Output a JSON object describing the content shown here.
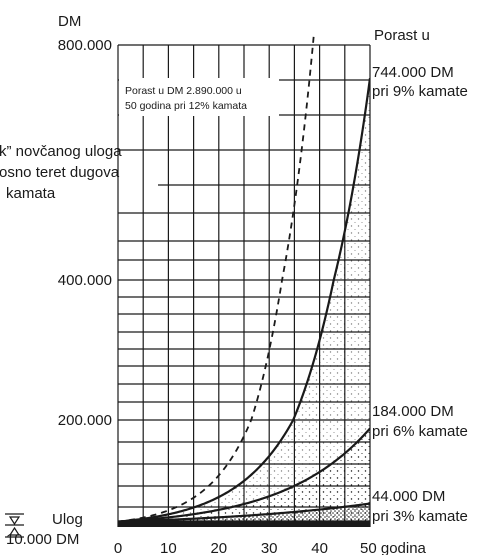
{
  "chart_data": {
    "type": "line",
    "y_unit": "DM",
    "x_unit": "50 godina",
    "x_ticks": [
      "0",
      "10",
      "20",
      "30",
      "40"
    ],
    "y_ticks": [
      {
        "value": 200000,
        "label": "200.000"
      },
      {
        "value": 400000,
        "label": "400.000"
      },
      {
        "value": 800000,
        "label": "800.000"
      }
    ],
    "xlim": [
      0,
      50
    ],
    "series": [
      {
        "name": "3%",
        "rate": 0.03,
        "style": "solid",
        "x": [
          0,
          10,
          20,
          30,
          40,
          50
        ],
        "y": [
          10000,
          13439,
          18061,
          24273,
          32620,
          43839
        ]
      },
      {
        "name": "6%",
        "rate": 0.06,
        "style": "solid",
        "x": [
          0,
          10,
          20,
          30,
          40,
          50
        ],
        "y": [
          10000,
          17908,
          32071,
          57435,
          102857,
          184202
        ]
      },
      {
        "name": "9%",
        "rate": 0.09,
        "style": "solid",
        "x": [
          0,
          10,
          20,
          30,
          40,
          50
        ],
        "y": [
          10000,
          23674,
          56044,
          132677,
          314094,
          743575
        ]
      },
      {
        "name": "12%",
        "rate": 0.12,
        "style": "dashed",
        "x": [
          0,
          10,
          20,
          30,
          40,
          50
        ],
        "y": [
          10000,
          31058,
          96463,
          299599,
          930510,
          2890022
        ]
      }
    ],
    "annotations": {
      "top_right": "Porast u",
      "nine_value": "744.000 DM",
      "nine_label": "pri 9% kamate",
      "six_value": "184.000 DM",
      "six_label": "pri 6% kamate",
      "three_value": "44.000 DM",
      "three_label": "pri 3% kamate",
      "box_line1": "Porast u DM 2.890.000 u",
      "box_line2": "50 godina pri 12% kamata",
      "left_line1": "k” novčanog uloga",
      "left_line2": "osno teret dugova",
      "left_line3": "kamata",
      "ulog_label": "Ulog",
      "ulog_value": "10.000 DM"
    }
  }
}
